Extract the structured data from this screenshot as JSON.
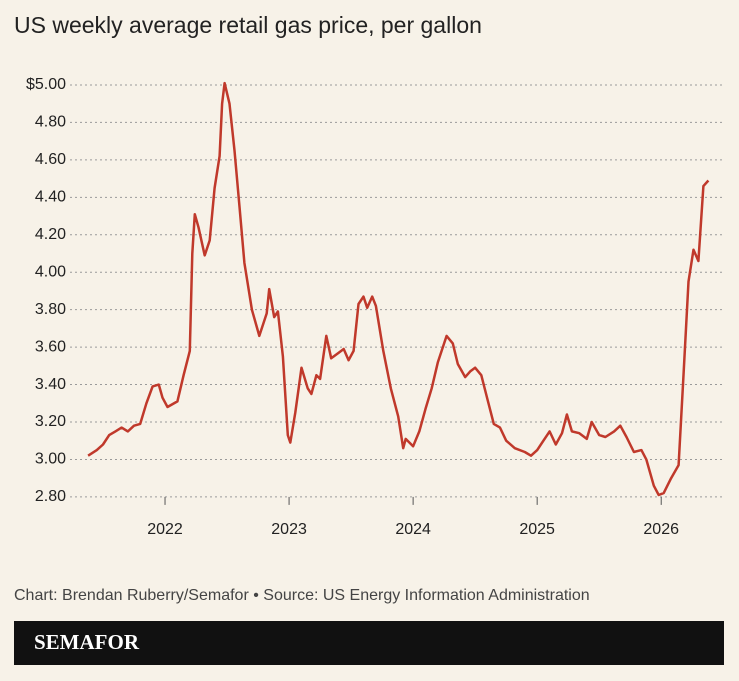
{
  "chart_data": {
    "type": "line",
    "title": "US weekly average retail gas price, per gallon",
    "x": [
      2021.38,
      2021.45,
      2021.5,
      2021.55,
      2021.6,
      2021.65,
      2021.7,
      2021.75,
      2021.8,
      2021.85,
      2021.9,
      2021.95,
      2021.98,
      2022.02,
      2022.1,
      2022.15,
      2022.2,
      2022.22,
      2022.24,
      2022.27,
      2022.32,
      2022.36,
      2022.4,
      2022.44,
      2022.46,
      2022.48,
      2022.52,
      2022.56,
      2022.6,
      2022.64,
      2022.7,
      2022.76,
      2022.82,
      2022.84,
      2022.88,
      2022.91,
      2022.95,
      2022.99,
      2023.01,
      2023.05,
      2023.1,
      2023.15,
      2023.18,
      2023.22,
      2023.25,
      2023.3,
      2023.34,
      2023.4,
      2023.44,
      2023.48,
      2023.52,
      2023.56,
      2023.6,
      2023.63,
      2023.67,
      2023.7,
      2023.76,
      2023.82,
      2023.88,
      2023.92,
      2023.94,
      2024.0,
      2024.05,
      2024.1,
      2024.15,
      2024.2,
      2024.27,
      2024.32,
      2024.36,
      2024.42,
      2024.46,
      2024.5,
      2024.55,
      2024.6,
      2024.65,
      2024.7,
      2024.75,
      2024.82,
      2024.9,
      2024.95,
      2025.0,
      2025.05,
      2025.1,
      2025.15,
      2025.2,
      2025.24,
      2025.28,
      2025.34,
      2025.4,
      2025.44,
      2025.5,
      2025.55,
      2025.62,
      2025.67,
      2025.72,
      2025.78,
      2025.84,
      2025.88,
      2025.94,
      2025.98,
      2026.02,
      2026.08,
      2026.14,
      2026.18,
      2026.22,
      2026.26,
      2026.3,
      2026.34,
      2026.38
    ],
    "series": [
      {
        "color": "#c0392b",
        "values": [
          3.02,
          3.05,
          3.08,
          3.13,
          3.15,
          3.17,
          3.15,
          3.18,
          3.19,
          3.3,
          3.39,
          3.4,
          3.33,
          3.28,
          3.31,
          3.45,
          3.58,
          4.1,
          4.31,
          4.24,
          4.09,
          4.17,
          4.45,
          4.62,
          4.9,
          5.01,
          4.9,
          4.65,
          4.35,
          4.05,
          3.8,
          3.66,
          3.78,
          3.91,
          3.76,
          3.79,
          3.55,
          3.13,
          3.09,
          3.25,
          3.49,
          3.38,
          3.35,
          3.45,
          3.43,
          3.66,
          3.54,
          3.57,
          3.59,
          3.53,
          3.58,
          3.83,
          3.87,
          3.81,
          3.87,
          3.82,
          3.58,
          3.38,
          3.23,
          3.06,
          3.11,
          3.07,
          3.15,
          3.27,
          3.38,
          3.52,
          3.66,
          3.62,
          3.51,
          3.44,
          3.47,
          3.49,
          3.45,
          3.32,
          3.19,
          3.17,
          3.1,
          3.06,
          3.04,
          3.02,
          3.05,
          3.1,
          3.15,
          3.08,
          3.14,
          3.24,
          3.15,
          3.14,
          3.11,
          3.2,
          3.13,
          3.12,
          3.15,
          3.18,
          3.12,
          3.04,
          3.05,
          3.0,
          2.86,
          2.81,
          2.82,
          2.9,
          2.97,
          3.45,
          3.95,
          4.12,
          4.06,
          4.46,
          4.49
        ]
      }
    ],
    "xlim": [
      2021.234,
      2026.49
    ],
    "xticks": [
      2022,
      2023,
      2024,
      2025,
      2026
    ],
    "ylim": [
      2.73,
      5.08
    ],
    "yticks": [
      {
        "value": 2.8,
        "label": "2.80"
      },
      {
        "value": 3,
        "label": "3.00"
      },
      {
        "value": 3.2,
        "label": "3.20"
      },
      {
        "value": 3.4,
        "label": "3.40"
      },
      {
        "value": 3.6,
        "label": "3.60"
      },
      {
        "value": 3.8,
        "label": "3.80"
      },
      {
        "value": 4,
        "label": "4.00"
      },
      {
        "value": 4.2,
        "label": "4.20"
      },
      {
        "value": 4.4,
        "label": "4.40"
      },
      {
        "value": 4.6,
        "label": "4.60"
      },
      {
        "value": 4.8,
        "label": "4.80"
      },
      {
        "value": 5,
        "label": "$5.00"
      }
    ],
    "grid": true
  },
  "footer": {
    "credit": "Chart: Brendan Ruberry/Semafor • Source: US Energy Information Administration",
    "brand": "SEMAFOR"
  }
}
